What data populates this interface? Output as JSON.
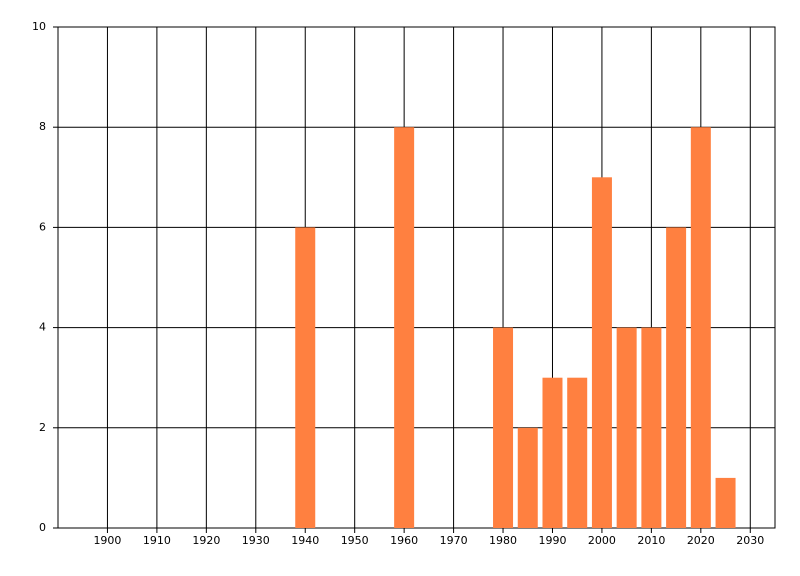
{
  "chart_data": {
    "type": "bar",
    "x": [
      1940,
      1960,
      1980,
      1985,
      1990,
      1995,
      2000,
      2005,
      2010,
      2015,
      2020,
      2025
    ],
    "values": [
      6,
      8,
      4,
      2,
      3,
      3,
      7,
      4,
      4,
      6,
      8,
      1
    ],
    "color": "#ff8040",
    "xlim": [
      1890,
      2035
    ],
    "xticks": [
      1900,
      1910,
      1920,
      1930,
      1940,
      1950,
      1960,
      1970,
      1980,
      1990,
      2000,
      2010,
      2020,
      2030
    ],
    "ylim": [
      0,
      10
    ],
    "yticks": [
      0,
      2,
      4,
      6,
      8,
      10
    ],
    "grid": true
  }
}
